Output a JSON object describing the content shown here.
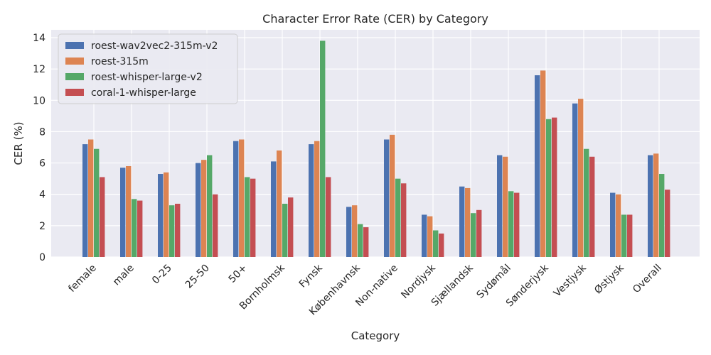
{
  "chart_data": {
    "type": "bar",
    "title": "Character Error Rate (CER) by Category",
    "xlabel": "Category",
    "ylabel": "CER (%)",
    "ylim": [
      0,
      14.5
    ],
    "yticks": [
      0,
      2,
      4,
      6,
      8,
      10,
      12,
      14
    ],
    "grid": true,
    "legend_position": "top-left",
    "categories": [
      "female",
      "male",
      "0-25",
      "25-50",
      "50+",
      "Bornholmsk",
      "Fynsk",
      "Københavnsk",
      "Non-native",
      "Nordjysk",
      "Sjællandsk",
      "Sydømål",
      "Sønderjysk",
      "Vestjysk",
      "Østjysk",
      "Overall"
    ],
    "series": [
      {
        "name": "roest-wav2vec2-315m-v2",
        "color": "#4C72B0",
        "values": [
          7.2,
          5.7,
          5.3,
          6.0,
          7.4,
          6.1,
          7.2,
          3.2,
          7.5,
          2.7,
          4.5,
          6.5,
          11.6,
          9.8,
          4.1,
          6.5
        ]
      },
      {
        "name": "roest-315m",
        "color": "#DD8452",
        "values": [
          7.5,
          5.8,
          5.4,
          6.2,
          7.5,
          6.8,
          7.4,
          3.3,
          7.8,
          2.6,
          4.4,
          6.4,
          11.9,
          10.1,
          4.0,
          6.6
        ]
      },
      {
        "name": "roest-whisper-large-v2",
        "color": "#55A868",
        "values": [
          6.9,
          3.7,
          3.3,
          6.5,
          5.1,
          3.4,
          13.8,
          2.1,
          5.0,
          1.7,
          2.8,
          4.2,
          8.8,
          6.9,
          2.7,
          5.3
        ]
      },
      {
        "name": "coral-1-whisper-large",
        "color": "#C44E52",
        "values": [
          5.1,
          3.6,
          3.4,
          4.0,
          5.0,
          3.8,
          5.1,
          1.9,
          4.7,
          1.5,
          3.0,
          4.1,
          8.9,
          6.4,
          2.7,
          4.3
        ]
      }
    ]
  }
}
